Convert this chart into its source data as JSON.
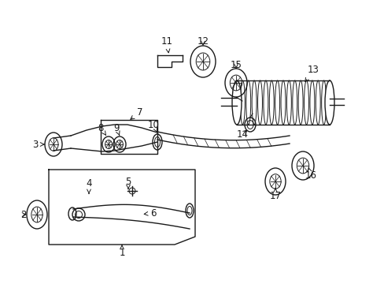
{
  "background_color": "#ffffff",
  "line_color": "#1a1a1a",
  "fig_width": 4.89,
  "fig_height": 3.6,
  "dpi": 100,
  "label_fontsize": 8.5
}
